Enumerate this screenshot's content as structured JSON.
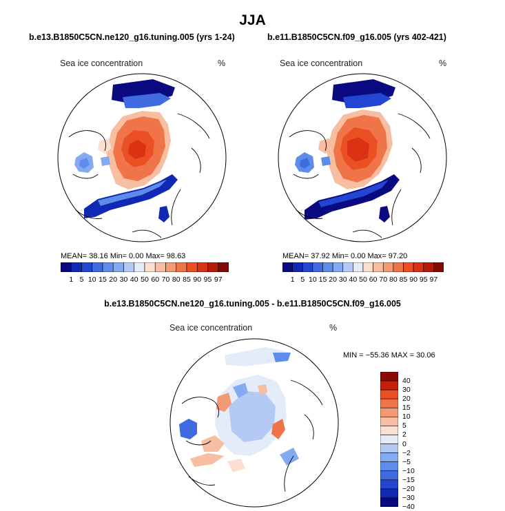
{
  "title": "JJA",
  "palette": {
    "seq": [
      "#0a0a80",
      "#1128b4",
      "#2346d2",
      "#3f6ae0",
      "#5e8ceb",
      "#84aaf2",
      "#b4caf5",
      "#e4ecfa",
      "#fbe0d2",
      "#f8bea2",
      "#f39a74",
      "#ef7448",
      "#ea5024",
      "#dc3214",
      "#b41c0a",
      "#820a04"
    ],
    "diff": [
      "#0a0a80",
      "#1128b4",
      "#2346d2",
      "#3f6ae0",
      "#5e8ceb",
      "#84aaf2",
      "#b4caf5",
      "#e4ecfa",
      "#fbe0d2",
      "#f8bea2",
      "#f39a74",
      "#ef7448",
      "#ea5024",
      "#c81e0a",
      "#8c0a04"
    ]
  },
  "panels": [
    {
      "subtitle": "b.e13.B1850C5CN.ne120_g16.tuning.005 (yrs 1-24)",
      "variable": "Sea ice concentration",
      "units": "%",
      "stats": "MEAN=   38.16   Min=    0.00   Max=   98.63",
      "colorbar_labels": [
        "1",
        "5",
        "10",
        "15",
        "20",
        "30",
        "40",
        "50",
        "60",
        "70",
        "80",
        "85",
        "90",
        "95",
        "97"
      ]
    },
    {
      "subtitle": "b.e11.B1850C5CN.f09_g16.005 (yrs 402-421)",
      "variable": "Sea ice concentration",
      "units": "%",
      "stats": "MEAN=   37.92   Min=    0.00   Max=   97.20",
      "colorbar_labels": [
        "1",
        "5",
        "10",
        "15",
        "20",
        "30",
        "40",
        "50",
        "60",
        "70",
        "80",
        "85",
        "90",
        "95",
        "97"
      ]
    }
  ],
  "difference": {
    "subtitle": "b.e13.B1850C5CN.ne120_g16.tuning.005 - b.e11.B1850C5CN.f09_g16.005",
    "variable": "Sea ice concentration",
    "units": "%",
    "stats": "MIN = −55.36  MAX =   30.06",
    "colorbar_labels": [
      "40",
      "30",
      "20",
      "15",
      "10",
      "5",
      "2",
      "0",
      "−2",
      "−5",
      "−10",
      "−15",
      "−20",
      "−30",
      "−40"
    ]
  }
}
